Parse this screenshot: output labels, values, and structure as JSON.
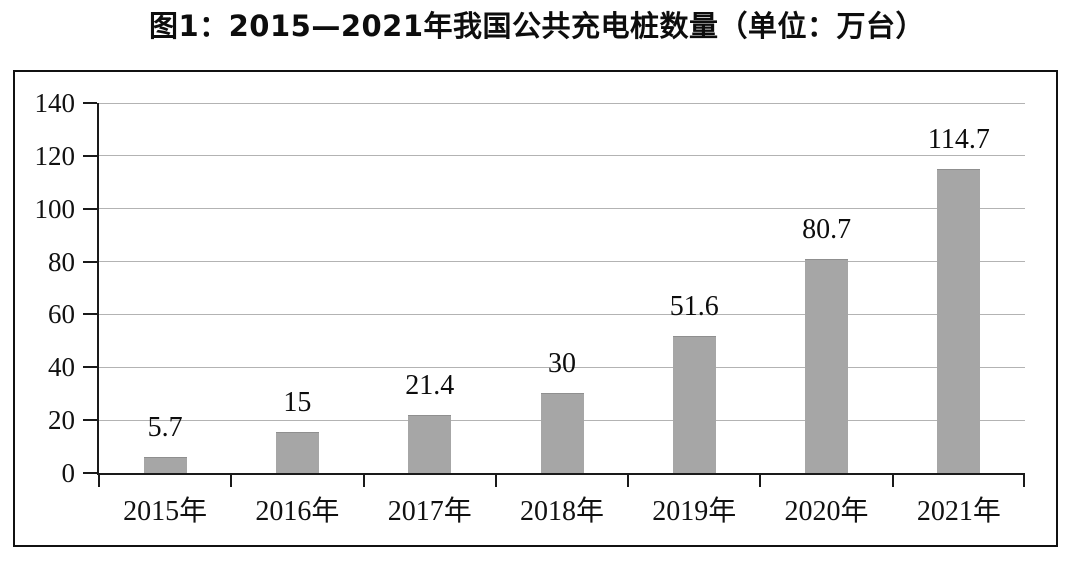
{
  "chart_data": {
    "type": "bar",
    "title": "图1：2015—2021年我国公共充电桩数量（单位：万台）",
    "categories": [
      "2015年",
      "2016年",
      "2017年",
      "2018年",
      "2019年",
      "2020年",
      "2021年"
    ],
    "values": [
      5.7,
      15,
      21.4,
      30,
      51.6,
      80.7,
      114.7
    ],
    "value_labels": [
      "5.7",
      "15",
      "21.4",
      "30",
      "51.6",
      "80.7",
      "114.7"
    ],
    "xlabel": "",
    "ylabel": "",
    "ylim": [
      0,
      140
    ],
    "yticks": [
      0,
      20,
      40,
      60,
      80,
      100,
      120,
      140
    ],
    "grid": true,
    "legend_position": "none",
    "bar_color": "#a6a6a6",
    "gridline_color": "#b3b3b3",
    "axis_color": "#1a1a1a",
    "frame_color": "#111111"
  }
}
